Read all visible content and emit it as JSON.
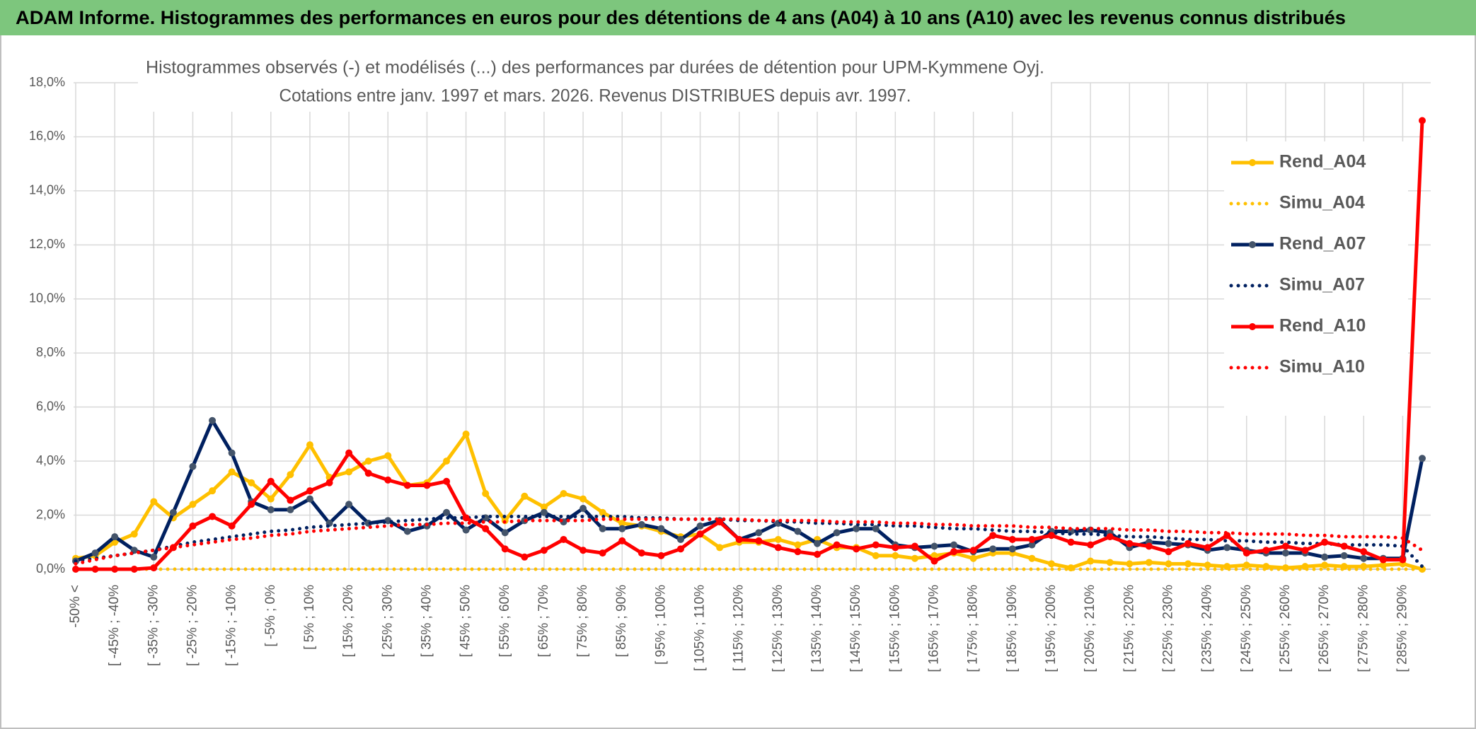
{
  "header": {
    "title": "ADAM Informe. Histogrammes des performances en euros pour des détentions de 4 ans (A04) à 10 ans (A10) avec les revenus connus distribués"
  },
  "chart_data": {
    "type": "line",
    "title": "Histogrammes observés (-) et modélisés (...) des performances par durées de détention pour UPM-Kymmene Oyj.",
    "subtitle": "Cotations entre janv. 1997 et mars. 2026. Revenus DISTRIBUES depuis avr. 1997.",
    "categories": [
      "-50% <",
      null,
      "[ -45% ; -40%",
      null,
      "[ -35% ; -30%",
      null,
      "[ -25% ; -20%",
      null,
      "[ -15% ; -10%",
      null,
      "[ -5% ; 0%",
      null,
      "[ 5% ; 10%",
      null,
      "[ 15% ; 20%",
      null,
      "[ 25% ; 30%",
      null,
      "[ 35% ; 40%",
      null,
      "[ 45% ; 50%",
      null,
      "[ 55% ; 60%",
      null,
      "[ 65% ; 70%",
      null,
      "[ 75% ; 80%",
      null,
      "[ 85% ; 90%",
      null,
      "[ 95% ; 100%",
      null,
      "[ 105% ; 110%",
      null,
      "[ 115% ; 120%",
      null,
      "[ 125% ; 130%",
      null,
      "[ 135% ; 140%",
      null,
      "[ 145% ; 150%",
      null,
      "[ 155% ; 160%",
      null,
      "[ 165% ; 170%",
      null,
      "[ 175% ; 180%",
      null,
      "[ 185% ; 190%",
      null,
      "[ 195% ; 200%",
      null,
      "[ 205% ; 210%",
      null,
      "[ 215% ; 220%",
      null,
      "[ 225% ; 230%",
      null,
      "[ 235% ; 240%",
      null,
      "[ 245% ; 250%",
      null,
      "[ 255% ; 260%",
      null,
      "[ 265% ; 270%",
      null,
      "[ 275% ; 280%",
      null,
      "[ 285% ; 290%",
      null
    ],
    "series": [
      {
        "name": "Rend_A04",
        "color": "#FFC000",
        "style": "solid",
        "marker": true,
        "marker_color": "#FFC000",
        "values": [
          0.4,
          0.5,
          1.0,
          1.3,
          2.5,
          1.9,
          2.4,
          2.9,
          3.6,
          3.2,
          2.6,
          3.5,
          4.6,
          3.4,
          3.6,
          4.0,
          4.2,
          3.1,
          3.2,
          4.0,
          5.0,
          2.8,
          1.8,
          2.7,
          2.3,
          2.8,
          2.6,
          2.1,
          1.7,
          1.6,
          1.4,
          1.2,
          1.3,
          0.8,
          1.0,
          1.0,
          1.1,
          0.9,
          1.1,
          0.8,
          0.8,
          0.5,
          0.5,
          0.4,
          0.5,
          0.6,
          0.4,
          0.6,
          0.6,
          0.4,
          0.2,
          0.05,
          0.3,
          0.25,
          0.2,
          0.25,
          0.2,
          0.2,
          0.15,
          0.1,
          0.15,
          0.1,
          0.05,
          0.1,
          0.15,
          0.1,
          0.1,
          0.15,
          0.2,
          0.0
        ]
      },
      {
        "name": "Simu_A04",
        "color": "#FFC000",
        "style": "dotted",
        "marker": false,
        "values": [
          0,
          0,
          0,
          0,
          0,
          0,
          0,
          0,
          0,
          0,
          0,
          0,
          0,
          0,
          0,
          0,
          0,
          0,
          0,
          0,
          0,
          0,
          0,
          0,
          0,
          0,
          0,
          0,
          0,
          0,
          0,
          0,
          0,
          0,
          0,
          0,
          0,
          0,
          0,
          0,
          0,
          0,
          0,
          0,
          0,
          0,
          0,
          0,
          0,
          0,
          0,
          0,
          0,
          0,
          0,
          0,
          0,
          0,
          0,
          0,
          0,
          0,
          0,
          0,
          0,
          0,
          0,
          0,
          0,
          0
        ]
      },
      {
        "name": "Rend_A07",
        "color": "#002060",
        "style": "solid",
        "marker": true,
        "marker_color": "#44546A",
        "values": [
          0.3,
          0.6,
          1.2,
          0.7,
          0.45,
          2.1,
          3.8,
          5.5,
          4.3,
          2.5,
          2.2,
          2.2,
          2.6,
          1.7,
          2.4,
          1.7,
          1.8,
          1.4,
          1.6,
          2.1,
          1.45,
          1.9,
          1.35,
          1.8,
          2.1,
          1.75,
          2.25,
          1.5,
          1.5,
          1.65,
          1.5,
          1.1,
          1.6,
          1.8,
          1.1,
          1.35,
          1.7,
          1.4,
          0.95,
          1.35,
          1.5,
          1.5,
          0.9,
          0.8,
          0.85,
          0.9,
          0.65,
          0.75,
          0.75,
          0.9,
          1.4,
          1.4,
          1.45,
          1.35,
          0.8,
          1.0,
          0.95,
          0.9,
          0.7,
          0.8,
          0.7,
          0.6,
          0.6,
          0.6,
          0.45,
          0.5,
          0.4,
          0.4,
          0.4,
          4.1
        ]
      },
      {
        "name": "Simu_A07",
        "color": "#002060",
        "style": "dotted",
        "marker": false,
        "values": [
          0.3,
          0.4,
          0.5,
          0.6,
          0.7,
          0.85,
          1.0,
          1.1,
          1.2,
          1.3,
          1.4,
          1.45,
          1.55,
          1.6,
          1.65,
          1.7,
          1.75,
          1.8,
          1.85,
          1.9,
          1.9,
          1.95,
          1.95,
          1.95,
          1.95,
          1.95,
          1.95,
          1.95,
          1.95,
          1.9,
          1.9,
          1.85,
          1.85,
          1.85,
          1.8,
          1.8,
          1.75,
          1.75,
          1.7,
          1.7,
          1.65,
          1.65,
          1.6,
          1.6,
          1.55,
          1.5,
          1.5,
          1.45,
          1.4,
          1.4,
          1.35,
          1.3,
          1.3,
          1.25,
          1.2,
          1.2,
          1.15,
          1.1,
          1.1,
          1.05,
          1.05,
          1.0,
          1.0,
          0.95,
          0.95,
          0.9,
          0.9,
          0.9,
          0.85,
          0.1
        ]
      },
      {
        "name": "Rend_A10",
        "color": "#FF0000",
        "style": "solid",
        "marker": true,
        "marker_color": "#FF0000",
        "values": [
          0.0,
          0.0,
          0.0,
          0.0,
          0.05,
          0.8,
          1.6,
          1.95,
          1.6,
          2.4,
          3.25,
          2.55,
          2.9,
          3.2,
          4.3,
          3.55,
          3.3,
          3.1,
          3.1,
          3.25,
          1.9,
          1.5,
          0.75,
          0.45,
          0.7,
          1.1,
          0.7,
          0.6,
          1.05,
          0.6,
          0.5,
          0.75,
          1.3,
          1.75,
          1.1,
          1.05,
          0.8,
          0.65,
          0.55,
          0.9,
          0.75,
          0.9,
          0.8,
          0.85,
          0.3,
          0.65,
          0.7,
          1.25,
          1.1,
          1.1,
          1.25,
          1.0,
          0.9,
          1.2,
          0.95,
          0.85,
          0.65,
          0.95,
          0.8,
          1.25,
          0.6,
          0.7,
          0.85,
          0.7,
          1.0,
          0.85,
          0.65,
          0.35,
          0.35,
          16.6
        ]
      },
      {
        "name": "Simu_A10",
        "color": "#FF0000",
        "style": "dotted",
        "marker": false,
        "values": [
          0.2,
          0.35,
          0.5,
          0.6,
          0.7,
          0.8,
          0.9,
          1.0,
          1.1,
          1.15,
          1.25,
          1.3,
          1.4,
          1.45,
          1.5,
          1.55,
          1.6,
          1.65,
          1.65,
          1.7,
          1.7,
          1.75,
          1.75,
          1.8,
          1.8,
          1.8,
          1.8,
          1.85,
          1.85,
          1.85,
          1.85,
          1.85,
          1.85,
          1.85,
          1.85,
          1.8,
          1.8,
          1.8,
          1.8,
          1.75,
          1.75,
          1.75,
          1.7,
          1.7,
          1.65,
          1.65,
          1.6,
          1.6,
          1.6,
          1.55,
          1.55,
          1.5,
          1.5,
          1.5,
          1.45,
          1.45,
          1.4,
          1.4,
          1.35,
          1.35,
          1.3,
          1.3,
          1.3,
          1.25,
          1.25,
          1.2,
          1.2,
          1.2,
          1.15,
          0.7
        ]
      }
    ],
    "ylim": [
      0,
      18
    ],
    "yticks": [
      {
        "value": 0,
        "label": "0,0%"
      },
      {
        "value": 2,
        "label": "2,0%"
      },
      {
        "value": 4,
        "label": "4,0%"
      },
      {
        "value": 6,
        "label": "6,0%"
      },
      {
        "value": 8,
        "label": "8,0%"
      },
      {
        "value": 10,
        "label": "10,0%"
      },
      {
        "value": 12,
        "label": "12,0%"
      },
      {
        "value": 14,
        "label": "14,0%"
      },
      {
        "value": 16,
        "label": "16,0%"
      },
      {
        "value": 18,
        "label": "18,0%"
      }
    ],
    "grid": true,
    "legend": "right"
  }
}
